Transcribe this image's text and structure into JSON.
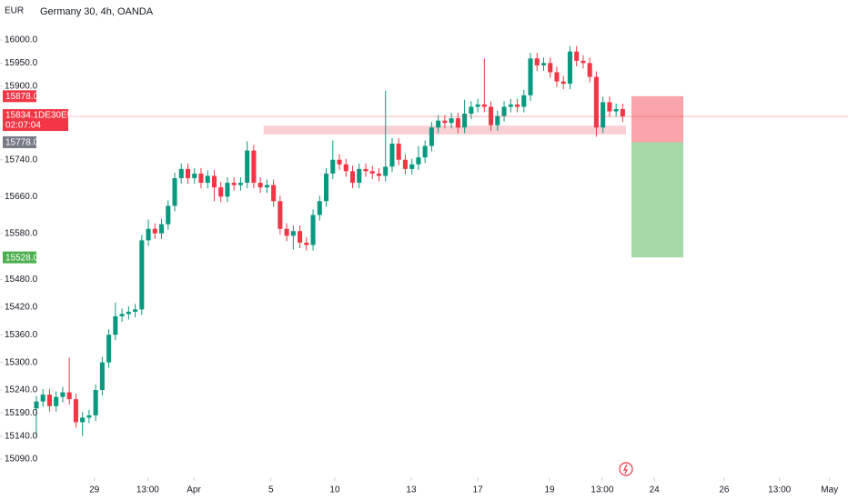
{
  "chart_data": {
    "type": "candlestick",
    "title": "Germany 30, 4h, OANDA",
    "currency": "EUR",
    "symbol": "DE30EUR",
    "countdown": "02:07:04",
    "last_price": 15834.1,
    "up_color": "#089981",
    "down_color": "#f23645",
    "open": [
      15200,
      15215,
      15230,
      15205,
      15225,
      15235,
      15220,
      15170,
      15180,
      15185,
      15240,
      15300,
      15360,
      15400,
      15405,
      15410,
      15415,
      15565,
      15590,
      15580,
      15600,
      15640,
      15700,
      15720,
      15700,
      15710,
      15690,
      15705,
      15680,
      15660,
      15690,
      15685,
      15690,
      15760,
      15690,
      15680,
      15685,
      15650,
      15590,
      15575,
      15585,
      15560,
      15555,
      15620,
      15650,
      15710,
      15740,
      15730,
      15715,
      15690,
      15720,
      15715,
      15710,
      15705,
      15725,
      15775,
      15740,
      15720,
      15730,
      15745,
      15770,
      15810,
      15825,
      15820,
      15830,
      15810,
      15840,
      15855,
      15860,
      15855,
      15815,
      15835,
      15855,
      15860,
      15855,
      15880,
      15960,
      15945,
      15950,
      15930,
      15910,
      15905,
      15975,
      15955,
      15950,
      15920,
      15810,
      15865,
      15845,
      15850
    ],
    "high": [
      15227,
      15242,
      15242,
      15237,
      15247,
      15310,
      15232,
      15192,
      15197,
      15252,
      15312,
      15372,
      15430,
      15417,
      15422,
      15427,
      15577,
      15610,
      15602,
      15612,
      15652,
      15712,
      15732,
      15732,
      15722,
      15722,
      15717,
      15717,
      15692,
      15702,
      15702,
      15702,
      15780,
      15772,
      15702,
      15697,
      15697,
      15662,
      15602,
      15597,
      15597,
      15572,
      15632,
      15662,
      15722,
      15782,
      15752,
      15742,
      15727,
      15732,
      15732,
      15727,
      15722,
      15890,
      15787,
      15787,
      15752,
      15742,
      15770,
      15782,
      15822,
      15837,
      15837,
      15842,
      15842,
      15870,
      15867,
      15872,
      15960,
      15867,
      15847,
      15867,
      15872,
      15872,
      15892,
      15972,
      15972,
      15962,
      15962,
      15942,
      15922,
      15987,
      15987,
      15967,
      15962,
      15932,
      15877,
      15877,
      15862,
      15862
    ],
    "low": [
      15140,
      15203,
      15193,
      15193,
      15213,
      15208,
      15158,
      15140,
      15168,
      15173,
      15228,
      15288,
      15348,
      15388,
      15393,
      15398,
      15403,
      15553,
      15568,
      15568,
      15588,
      15628,
      15688,
      15688,
      15688,
      15678,
      15678,
      15650,
      15648,
      15648,
      15673,
      15673,
      15678,
      15678,
      15668,
      15668,
      15638,
      15578,
      15563,
      15545,
      15548,
      15543,
      15543,
      15608,
      15638,
      15698,
      15718,
      15703,
      15678,
      15678,
      15703,
      15698,
      15693,
      15693,
      15713,
      15728,
      15708,
      15708,
      15718,
      15733,
      15758,
      15798,
      15808,
      15808,
      15798,
      15798,
      15828,
      15843,
      15843,
      15803,
      15803,
      15823,
      15843,
      15843,
      15843,
      15868,
      15933,
      15933,
      15918,
      15898,
      15893,
      15893,
      15943,
      15938,
      15908,
      15790,
      15798,
      15833,
      15833,
      15822
    ],
    "close": [
      15215,
      15230,
      15205,
      15225,
      15235,
      15220,
      15170,
      15180,
      15185,
      15240,
      15300,
      15360,
      15400,
      15405,
      15410,
      15415,
      15565,
      15590,
      15580,
      15600,
      15640,
      15700,
      15720,
      15700,
      15710,
      15690,
      15705,
      15680,
      15660,
      15690,
      15685,
      15690,
      15760,
      15690,
      15680,
      15685,
      15650,
      15590,
      15575,
      15585,
      15560,
      15555,
      15620,
      15650,
      15710,
      15740,
      15730,
      15715,
      15690,
      15720,
      15715,
      15710,
      15705,
      15725,
      15775,
      15740,
      15720,
      15730,
      15745,
      15770,
      15810,
      15825,
      15820,
      15830,
      15810,
      15840,
      15855,
      15860,
      15855,
      15815,
      15835,
      15855,
      15860,
      15855,
      15880,
      15960,
      15945,
      15950,
      15930,
      15910,
      15905,
      15975,
      15955,
      15950,
      15920,
      15810,
      15865,
      15845,
      15850,
      15834
    ],
    "xlim": [
      -5.52,
      123.2
    ],
    "xticks": [
      {
        "value": 8.8,
        "label": "29"
      },
      {
        "value": 16.9,
        "label": "13:00"
      },
      {
        "value": 23.9,
        "label": "Apr"
      },
      {
        "value": 35.6,
        "label": "5"
      },
      {
        "value": 45.3,
        "label": "10"
      },
      {
        "value": 56.9,
        "label": "13"
      },
      {
        "value": 67.0,
        "label": "17"
      },
      {
        "value": 77.9,
        "label": "19"
      },
      {
        "value": 85.9,
        "label": "13:00"
      },
      {
        "value": 93.8,
        "label": "24"
      },
      {
        "value": 104.4,
        "label": "26"
      },
      {
        "value": 112.8,
        "label": "13:00"
      },
      {
        "value": 120.4,
        "label": "May"
      }
    ],
    "ylim": [
      15050.5,
      16086.9
    ],
    "yticks": [
      {
        "value": 16000,
        "label": "16000.0"
      },
      {
        "value": 15950,
        "label": "15950.0"
      },
      {
        "value": 15900,
        "label": "15900.0"
      },
      {
        "value": 15740,
        "label": "15740.0"
      },
      {
        "value": 15660,
        "label": "15660.0"
      },
      {
        "value": 15580,
        "label": "15580.0"
      },
      {
        "value": 15480,
        "label": "15480.0"
      },
      {
        "value": 15420,
        "label": "15420.0"
      },
      {
        "value": 15360,
        "label": "15360.0"
      },
      {
        "value": 15300,
        "label": "15300.0"
      },
      {
        "value": 15240,
        "label": "15240.0"
      },
      {
        "value": 15190,
        "label": "15190.0"
      },
      {
        "value": 15140,
        "label": "15140.0"
      },
      {
        "value": 15090,
        "label": "15090.0"
      }
    ],
    "zone": {
      "values": [
        15814,
        15795
      ],
      "color": "#f8c8cc"
    },
    "position": {
      "values": [
        15878,
        15778,
        15528
      ],
      "value_labels": [
        "15878.0",
        "15778.0",
        "15528.0"
      ],
      "colors": [
        "#f23645",
        "#787b86",
        "#4caf50"
      ]
    }
  }
}
